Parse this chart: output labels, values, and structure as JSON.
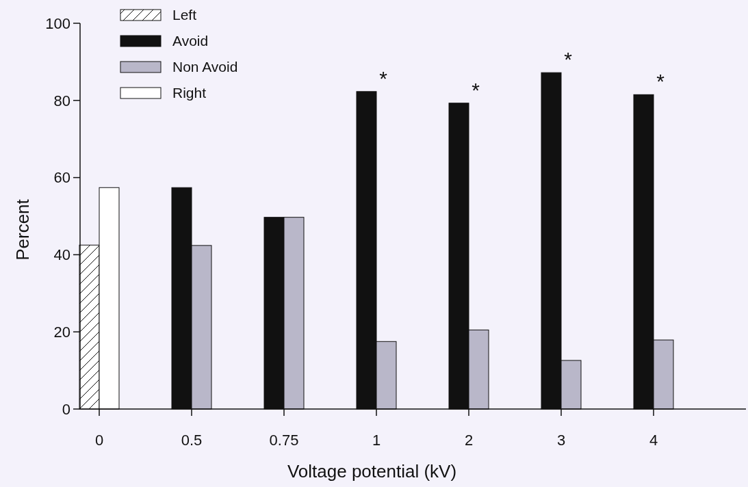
{
  "chart_data": {
    "type": "bar",
    "xlabel": "Voltage potential (kV)",
    "ylabel": "Percent",
    "categories": [
      "0",
      "0.5",
      "0.75",
      "1",
      "2",
      "3",
      "4"
    ],
    "series": [
      {
        "name": "Left",
        "color": "#111111",
        "values": [
          42.5,
          null,
          null,
          null,
          null,
          null,
          null
        ]
      },
      {
        "name": "Avoid",
        "color": "#111111",
        "values": [
          null,
          57.4,
          49.7,
          82.3,
          79.3,
          87.2,
          81.5
        ]
      },
      {
        "name": "Non Avoid",
        "color": "#b9b7c9",
        "values": [
          null,
          42.4,
          49.7,
          17.5,
          20.5,
          12.6,
          17.9
        ]
      },
      {
        "name": "Right",
        "color": "#ffffff",
        "values": [
          57.4,
          null,
          null,
          null,
          null,
          null,
          null
        ]
      }
    ],
    "ylim": [
      0,
      100
    ],
    "yticks": [
      0,
      20,
      40,
      60,
      80,
      100
    ],
    "grid": false,
    "legend": "top left",
    "annotations": [
      {
        "text": "*",
        "x": "1",
        "y": 82.3
      },
      {
        "text": "*",
        "x": "2",
        "y": 79.3
      },
      {
        "text": "*",
        "x": "3",
        "y": 87.2
      },
      {
        "text": "*",
        "x": "4",
        "y": 81.5
      }
    ]
  }
}
